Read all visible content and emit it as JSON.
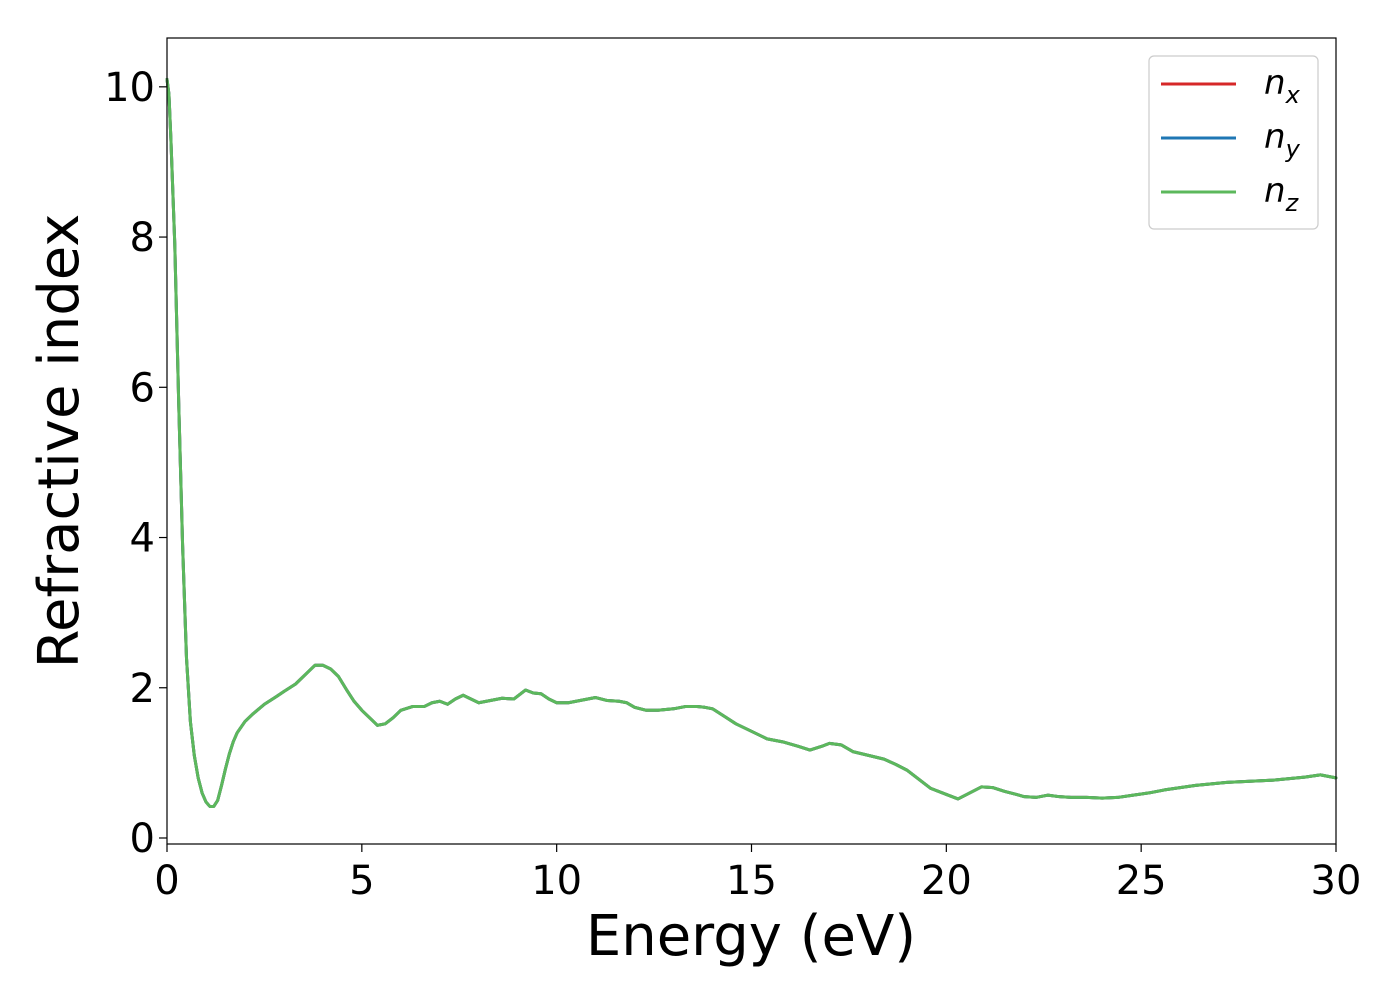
{
  "chart_data": {
    "type": "line",
    "xlabel": "Energy (eV)",
    "ylabel": "Refractive index",
    "xlim": [
      0,
      30
    ],
    "ylim": [
      -0.08,
      10.65
    ],
    "xticks": [
      0,
      5,
      10,
      15,
      20,
      25,
      30
    ],
    "yticks": [
      0,
      2,
      4,
      6,
      8,
      10
    ],
    "xtick_labels": [
      "0",
      "5",
      "10",
      "15",
      "20",
      "25",
      "30"
    ],
    "ytick_labels": [
      "0",
      "2",
      "4",
      "6",
      "8",
      "10"
    ],
    "grid": false,
    "legend_position": "top-right",
    "series": [
      {
        "name": "n_x",
        "label_main": "n",
        "label_sub": "x",
        "color": "#d62728",
        "x": [
          0,
          0.05,
          0.1,
          0.2,
          0.3,
          0.4,
          0.5,
          0.6,
          0.7,
          0.8,
          0.9,
          1.0,
          1.1,
          1.2,
          1.3,
          1.4,
          1.5,
          1.6,
          1.7,
          1.8,
          2.0,
          2.2,
          2.5,
          2.8,
          3.0,
          3.3,
          3.6,
          3.8,
          4.0,
          4.2,
          4.4,
          4.6,
          4.8,
          5.0,
          5.2,
          5.4,
          5.6,
          5.8,
          6.0,
          6.3,
          6.6,
          6.8,
          7.0,
          7.2,
          7.4,
          7.6,
          7.8,
          8.0,
          8.3,
          8.6,
          8.9,
          9.2,
          9.4,
          9.6,
          9.8,
          10.0,
          10.3,
          10.6,
          11.0,
          11.3,
          11.6,
          11.8,
          12.0,
          12.3,
          12.6,
          13.0,
          13.3,
          13.6,
          13.8,
          14.0,
          14.3,
          14.6,
          15.0,
          15.4,
          15.8,
          16.2,
          16.5,
          16.8,
          17.0,
          17.3,
          17.6,
          18.0,
          18.4,
          18.7,
          19.0,
          19.3,
          19.6,
          20.0,
          20.3,
          20.6,
          20.9,
          21.2,
          21.5,
          21.8,
          22.0,
          22.3,
          22.6,
          22.9,
          23.2,
          23.6,
          24.0,
          24.4,
          24.8,
          25.2,
          25.6,
          26.0,
          26.4,
          26.8,
          27.2,
          27.6,
          28.0,
          28.4,
          28.8,
          29.2,
          29.6,
          30.0
        ],
        "y": [
          10.1,
          9.9,
          9.3,
          7.9,
          5.8,
          3.9,
          2.4,
          1.55,
          1.1,
          0.8,
          0.6,
          0.48,
          0.42,
          0.42,
          0.5,
          0.7,
          0.92,
          1.12,
          1.28,
          1.4,
          1.55,
          1.65,
          1.78,
          1.88,
          1.95,
          2.05,
          2.2,
          2.3,
          2.3,
          2.25,
          2.15,
          1.98,
          1.82,
          1.7,
          1.6,
          1.5,
          1.52,
          1.6,
          1.7,
          1.75,
          1.75,
          1.8,
          1.82,
          1.78,
          1.85,
          1.9,
          1.85,
          1.8,
          1.83,
          1.86,
          1.85,
          1.97,
          1.93,
          1.92,
          1.85,
          1.8,
          1.8,
          1.83,
          1.87,
          1.83,
          1.82,
          1.8,
          1.74,
          1.7,
          1.7,
          1.72,
          1.75,
          1.75,
          1.74,
          1.72,
          1.62,
          1.52,
          1.42,
          1.32,
          1.28,
          1.22,
          1.17,
          1.22,
          1.26,
          1.24,
          1.15,
          1.1,
          1.05,
          0.98,
          0.9,
          0.78,
          0.66,
          0.58,
          0.52,
          0.6,
          0.68,
          0.67,
          0.62,
          0.58,
          0.55,
          0.54,
          0.57,
          0.55,
          0.54,
          0.54,
          0.53,
          0.54,
          0.57,
          0.6,
          0.64,
          0.67,
          0.7,
          0.72,
          0.74,
          0.75,
          0.76,
          0.77,
          0.79,
          0.81,
          0.84,
          0.8
        ]
      },
      {
        "name": "n_y",
        "label_main": "n",
        "label_sub": "y",
        "color": "#1f77b4",
        "x": [
          0,
          0.05,
          0.1,
          0.2,
          0.3,
          0.4,
          0.5,
          0.6,
          0.7,
          0.8,
          0.9,
          1.0,
          1.1,
          1.2,
          1.3,
          1.4,
          1.5,
          1.6,
          1.7,
          1.8,
          2.0,
          2.2,
          2.5,
          2.8,
          3.0,
          3.3,
          3.6,
          3.8,
          4.0,
          4.2,
          4.4,
          4.6,
          4.8,
          5.0,
          5.2,
          5.4,
          5.6,
          5.8,
          6.0,
          6.3,
          6.6,
          6.8,
          7.0,
          7.2,
          7.4,
          7.6,
          7.8,
          8.0,
          8.3,
          8.6,
          8.9,
          9.2,
          9.4,
          9.6,
          9.8,
          10.0,
          10.3,
          10.6,
          11.0,
          11.3,
          11.6,
          11.8,
          12.0,
          12.3,
          12.6,
          13.0,
          13.3,
          13.6,
          13.8,
          14.0,
          14.3,
          14.6,
          15.0,
          15.4,
          15.8,
          16.2,
          16.5,
          16.8,
          17.0,
          17.3,
          17.6,
          18.0,
          18.4,
          18.7,
          19.0,
          19.3,
          19.6,
          20.0,
          20.3,
          20.6,
          20.9,
          21.2,
          21.5,
          21.8,
          22.0,
          22.3,
          22.6,
          22.9,
          23.2,
          23.6,
          24.0,
          24.4,
          24.8,
          25.2,
          25.6,
          26.0,
          26.4,
          26.8,
          27.2,
          27.6,
          28.0,
          28.4,
          28.8,
          29.2,
          29.6,
          30.0
        ],
        "y": [
          10.1,
          9.9,
          9.3,
          7.9,
          5.8,
          3.9,
          2.4,
          1.55,
          1.1,
          0.8,
          0.6,
          0.48,
          0.42,
          0.42,
          0.5,
          0.7,
          0.92,
          1.12,
          1.28,
          1.4,
          1.55,
          1.65,
          1.78,
          1.88,
          1.95,
          2.05,
          2.2,
          2.3,
          2.3,
          2.25,
          2.15,
          1.98,
          1.82,
          1.7,
          1.6,
          1.5,
          1.52,
          1.6,
          1.7,
          1.75,
          1.75,
          1.8,
          1.82,
          1.78,
          1.85,
          1.9,
          1.85,
          1.8,
          1.83,
          1.86,
          1.85,
          1.97,
          1.93,
          1.92,
          1.85,
          1.8,
          1.8,
          1.83,
          1.87,
          1.83,
          1.82,
          1.8,
          1.74,
          1.7,
          1.7,
          1.72,
          1.75,
          1.75,
          1.74,
          1.72,
          1.62,
          1.52,
          1.42,
          1.32,
          1.28,
          1.22,
          1.17,
          1.22,
          1.26,
          1.24,
          1.15,
          1.1,
          1.05,
          0.98,
          0.9,
          0.78,
          0.66,
          0.58,
          0.52,
          0.6,
          0.68,
          0.67,
          0.62,
          0.58,
          0.55,
          0.54,
          0.57,
          0.55,
          0.54,
          0.54,
          0.53,
          0.54,
          0.57,
          0.6,
          0.64,
          0.67,
          0.7,
          0.72,
          0.74,
          0.75,
          0.76,
          0.77,
          0.79,
          0.81,
          0.84,
          0.8
        ]
      },
      {
        "name": "n_z",
        "label_main": "n",
        "label_sub": "z",
        "color": "#5cb85c",
        "x": [
          0,
          0.05,
          0.1,
          0.2,
          0.3,
          0.4,
          0.5,
          0.6,
          0.7,
          0.8,
          0.9,
          1.0,
          1.1,
          1.2,
          1.3,
          1.4,
          1.5,
          1.6,
          1.7,
          1.8,
          2.0,
          2.2,
          2.5,
          2.8,
          3.0,
          3.3,
          3.6,
          3.8,
          4.0,
          4.2,
          4.4,
          4.6,
          4.8,
          5.0,
          5.2,
          5.4,
          5.6,
          5.8,
          6.0,
          6.3,
          6.6,
          6.8,
          7.0,
          7.2,
          7.4,
          7.6,
          7.8,
          8.0,
          8.3,
          8.6,
          8.9,
          9.2,
          9.4,
          9.6,
          9.8,
          10.0,
          10.3,
          10.6,
          11.0,
          11.3,
          11.6,
          11.8,
          12.0,
          12.3,
          12.6,
          13.0,
          13.3,
          13.6,
          13.8,
          14.0,
          14.3,
          14.6,
          15.0,
          15.4,
          15.8,
          16.2,
          16.5,
          16.8,
          17.0,
          17.3,
          17.6,
          18.0,
          18.4,
          18.7,
          19.0,
          19.3,
          19.6,
          20.0,
          20.3,
          20.6,
          20.9,
          21.2,
          21.5,
          21.8,
          22.0,
          22.3,
          22.6,
          22.9,
          23.2,
          23.6,
          24.0,
          24.4,
          24.8,
          25.2,
          25.6,
          26.0,
          26.4,
          26.8,
          27.2,
          27.6,
          28.0,
          28.4,
          28.8,
          29.2,
          29.6,
          30.0
        ],
        "y": [
          10.1,
          9.9,
          9.3,
          7.9,
          5.8,
          3.9,
          2.4,
          1.55,
          1.1,
          0.8,
          0.6,
          0.48,
          0.42,
          0.42,
          0.5,
          0.7,
          0.92,
          1.12,
          1.28,
          1.4,
          1.55,
          1.65,
          1.78,
          1.88,
          1.95,
          2.05,
          2.2,
          2.3,
          2.3,
          2.25,
          2.15,
          1.98,
          1.82,
          1.7,
          1.6,
          1.5,
          1.52,
          1.6,
          1.7,
          1.75,
          1.75,
          1.8,
          1.82,
          1.78,
          1.85,
          1.9,
          1.85,
          1.8,
          1.83,
          1.86,
          1.85,
          1.97,
          1.93,
          1.92,
          1.85,
          1.8,
          1.8,
          1.83,
          1.87,
          1.83,
          1.82,
          1.8,
          1.74,
          1.7,
          1.7,
          1.72,
          1.75,
          1.75,
          1.74,
          1.72,
          1.62,
          1.52,
          1.42,
          1.32,
          1.28,
          1.22,
          1.17,
          1.22,
          1.26,
          1.24,
          1.15,
          1.1,
          1.05,
          0.98,
          0.9,
          0.78,
          0.66,
          0.58,
          0.52,
          0.6,
          0.68,
          0.67,
          0.62,
          0.58,
          0.55,
          0.54,
          0.57,
          0.55,
          0.54,
          0.54,
          0.53,
          0.54,
          0.57,
          0.6,
          0.64,
          0.67,
          0.7,
          0.72,
          0.74,
          0.75,
          0.76,
          0.77,
          0.79,
          0.81,
          0.84,
          0.8
        ]
      }
    ]
  }
}
